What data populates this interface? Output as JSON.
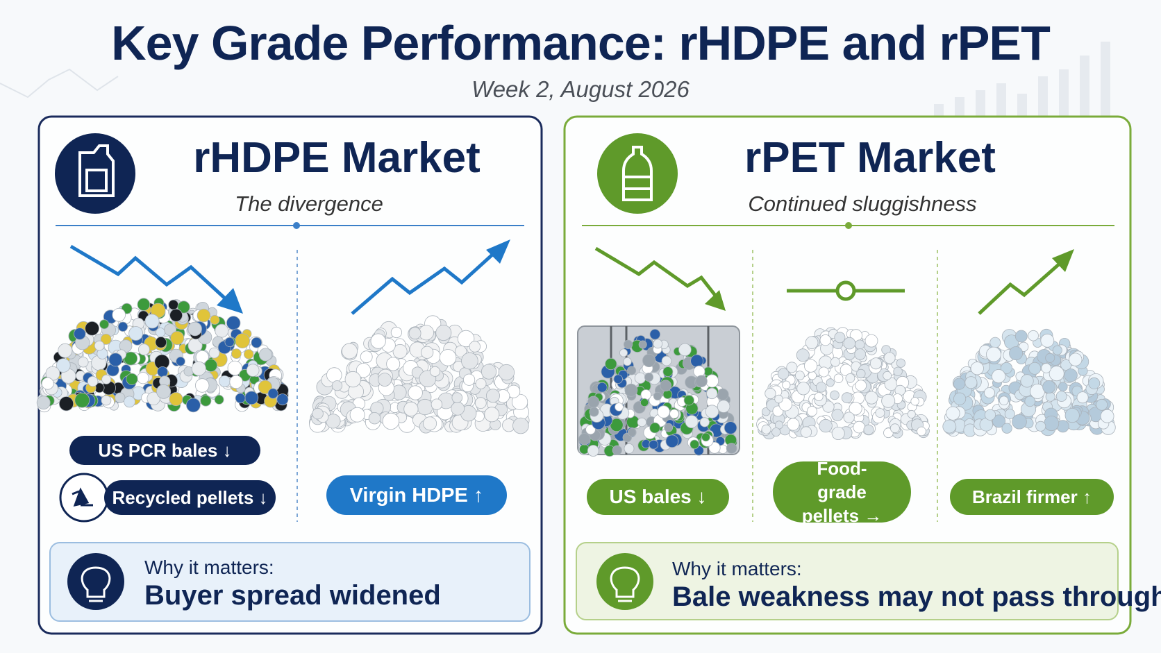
{
  "header": {
    "title": "Key Grade Performance: rHDPE and rPET",
    "subtitle": "Week 2, August 2026"
  },
  "panels": [
    {
      "title": "rHDPE Market",
      "subtitle": "The divergence",
      "labels": [
        "US PCR bales ↓",
        "Recycled pellets ↓",
        "Virgin HDPE ↑"
      ],
      "why_label": "Why it matters:",
      "why_text": "Buyer spread widened"
    },
    {
      "title": "rPET Market",
      "subtitle": "Continued sluggishness",
      "labels": [
        "US bales ↓",
        "Food-grade pellets →",
        "Brazil firmer ↑"
      ],
      "why_label": "Why it matters:",
      "why_text": "Bale weakness may not pass through"
    }
  ]
}
